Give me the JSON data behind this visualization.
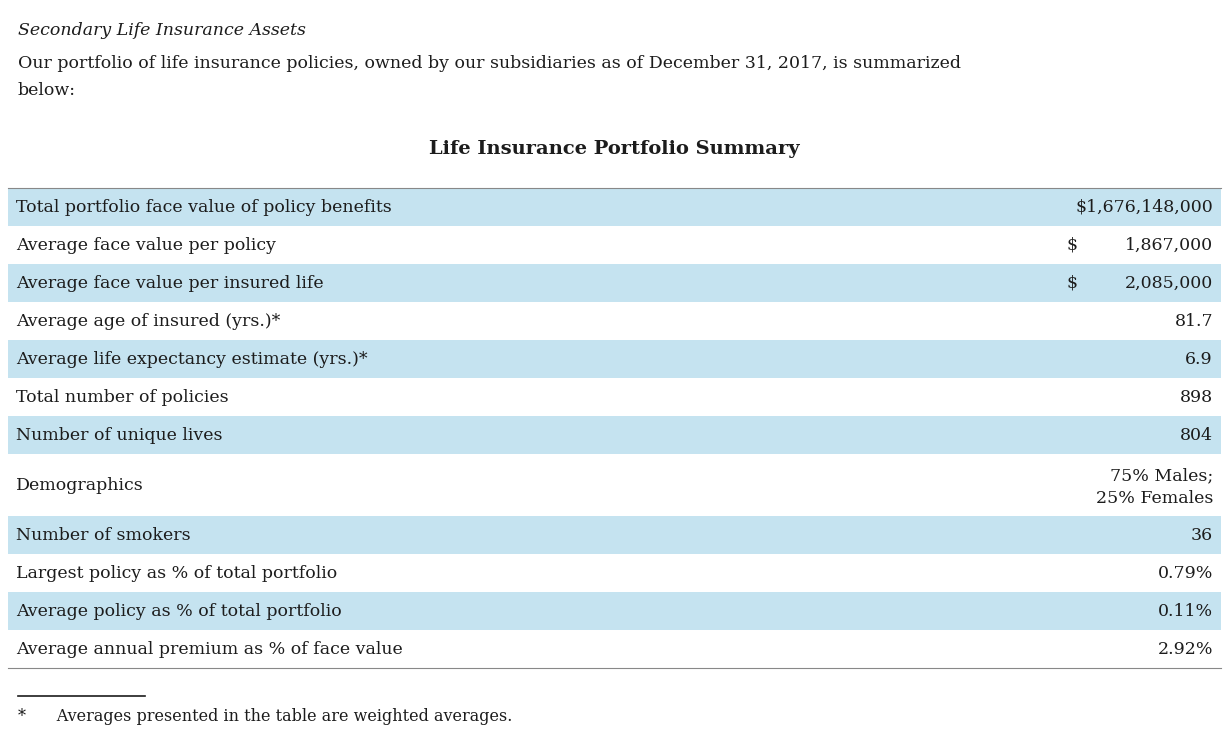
{
  "italic_title": "Secondary Life Insurance Assets",
  "intro_line1": "Our portfolio of life insurance policies, owned by our subsidiaries as of December 31, 2017, is summarized",
  "intro_line2": "below:",
  "table_title": "Life Insurance Portfolio Summary",
  "rows": [
    {
      "label": "Total portfolio face value of policy benefits",
      "value": "$1,676,148,000",
      "value2": null,
      "shaded": true,
      "tall": false
    },
    {
      "label": "Average face value per policy",
      "value": "$",
      "value2": "1,867,000",
      "shaded": false,
      "tall": false
    },
    {
      "label": "Average face value per insured life",
      "value": "$",
      "value2": "2,085,000",
      "shaded": true,
      "tall": false
    },
    {
      "label": "Average age of insured (yrs.)*",
      "value": "81.7",
      "value2": null,
      "shaded": false,
      "tall": false
    },
    {
      "label": "Average life expectancy estimate (yrs.)*",
      "value": "6.9",
      "value2": null,
      "shaded": true,
      "tall": false
    },
    {
      "label": "Total number of policies",
      "value": "898",
      "value2": null,
      "shaded": false,
      "tall": false
    },
    {
      "label": "Number of unique lives",
      "value": "804",
      "value2": null,
      "shaded": true,
      "tall": false
    },
    {
      "label": "Demographics",
      "value": "75% Males;",
      "value2": "25% Females",
      "shaded": false,
      "tall": true
    },
    {
      "label": "Number of smokers",
      "value": "36",
      "value2": null,
      "shaded": true,
      "tall": false
    },
    {
      "label": "Largest policy as % of total portfolio",
      "value": "0.79%",
      "value2": null,
      "shaded": false,
      "tall": false
    },
    {
      "label": "Average policy as % of total portfolio",
      "value": "0.11%",
      "value2": null,
      "shaded": true,
      "tall": false
    },
    {
      "label": "Average annual premium as % of face value",
      "value": "2.92%",
      "value2": null,
      "shaded": false,
      "tall": false
    }
  ],
  "footnote": "*      Averages presented in the table are weighted averages.",
  "shaded_color": "#c5e3f0",
  "white_color": "#ffffff",
  "background_color": "#ffffff",
  "text_color": "#1c1c1c",
  "font_size": 12.5,
  "table_title_font_size": 14
}
